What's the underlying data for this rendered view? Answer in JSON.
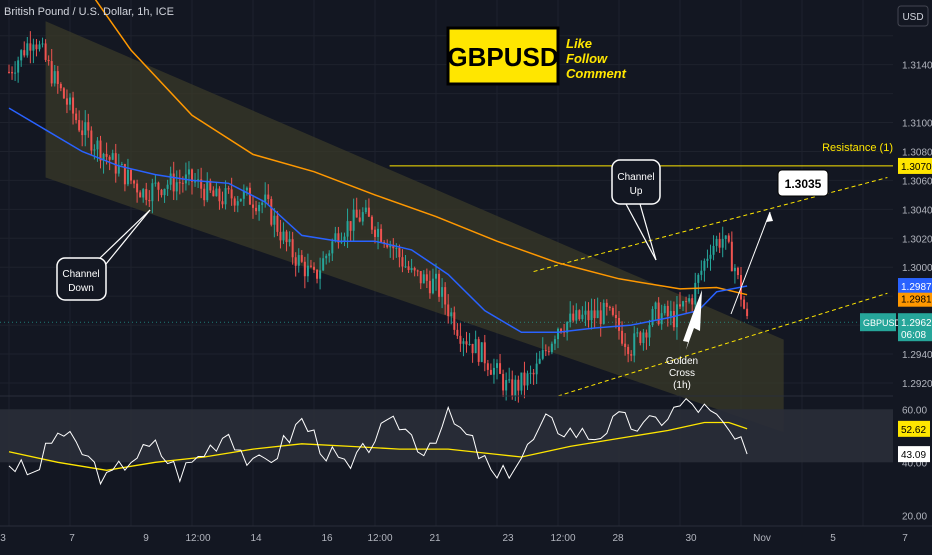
{
  "header": {
    "symbol_title": "British Pound / U.S. Dollar, 1h, ICE"
  },
  "badge": {
    "ticker": "GBPUSD",
    "line1": "Like",
    "line2": "Follow",
    "line3": "Comment",
    "color": "#ffe600"
  },
  "colors": {
    "background": "#131722",
    "grid": "#1e222d",
    "channel_fill": "#3a3a28",
    "price_up": "#26a69a",
    "price_down": "#ef5350",
    "ma_blue": "#2962ff",
    "ma_orange": "#ff9800",
    "resistance": "#ffe600",
    "rsi_line": "#ffffff",
    "rsi_ma": "#ffe600",
    "rsi_band": "#2a2e39"
  },
  "annotations": {
    "channel_down": {
      "line1": "Channel",
      "line2": "Down"
    },
    "channel_up": {
      "line1": "Channel",
      "line2": "Up"
    },
    "target": "1.3035",
    "golden_cross": {
      "line1": "Golden",
      "line2": "Cross",
      "line3": "(1h)"
    },
    "resistance": "Resistance (1)"
  },
  "price_axis": {
    "currency": "USD",
    "ticks": [
      "1.3140",
      "1.3100",
      "1.3080",
      "1.3060",
      "1.3040",
      "1.3020",
      "1.3000",
      "1.2940",
      "1.2920"
    ],
    "labels": {
      "resistance": "1.3070",
      "ma_blue": "1.2987",
      "ma_orange": "1.2981",
      "last_symbol": "GBPUSD",
      "last_price": "1.2962",
      "countdown": "06:08"
    }
  },
  "rsi_axis": {
    "ticks": [
      "60.00",
      "40.00",
      "20.00"
    ],
    "labels": {
      "rsi_ma": "52.62",
      "rsi": "43.09"
    }
  },
  "time_axis": [
    "3",
    "7",
    "9",
    "12:00",
    "14",
    "16",
    "12:00",
    "21",
    "23",
    "12:00",
    "28",
    "30",
    "Nov",
    "5",
    "7"
  ],
  "chart_data": {
    "type": "candlestick",
    "symbol": "GBPUSD",
    "timeframe": "1h",
    "y_range": [
      1.2911,
      1.3175
    ],
    "resistance_level": 1.307,
    "target_level": 1.3035,
    "price_path": [
      [
        0,
        1.3135
      ],
      [
        2,
        1.316
      ],
      [
        4,
        1.3125
      ],
      [
        6,
        1.3095
      ],
      [
        9,
        1.3068
      ],
      [
        11,
        1.3052
      ],
      [
        13,
        1.3058
      ],
      [
        15,
        1.306
      ],
      [
        17,
        1.3047
      ],
      [
        19,
        1.305
      ],
      [
        21,
        1.3044
      ],
      [
        23,
        1.3012
      ],
      [
        25,
        1.2992
      ],
      [
        27,
        1.3025
      ],
      [
        29,
        1.3036
      ],
      [
        31,
        1.302
      ],
      [
        33,
        1.2995
      ],
      [
        35,
        1.2988
      ],
      [
        37,
        1.2955
      ],
      [
        39,
        1.2938
      ],
      [
        41,
        1.2915
      ],
      [
        43,
        1.2925
      ],
      [
        45,
        1.296
      ],
      [
        47,
        1.2965
      ],
      [
        49,
        1.2968
      ],
      [
        51,
        1.2945
      ],
      [
        53,
        1.2968
      ],
      [
        54.5,
        1.2965
      ],
      [
        56,
        1.298
      ],
      [
        57.5,
        1.3015
      ],
      [
        58.5,
        1.302
      ],
      [
        59.5,
        1.3
      ],
      [
        60.5,
        1.2962
      ]
    ],
    "ma_blue_path": [
      [
        0,
        1.311
      ],
      [
        3,
        1.3095
      ],
      [
        6,
        1.308
      ],
      [
        9,
        1.307
      ],
      [
        12,
        1.3064
      ],
      [
        15,
        1.306
      ],
      [
        18,
        1.3058
      ],
      [
        21,
        1.3045
      ],
      [
        24,
        1.3022
      ],
      [
        27,
        1.3018
      ],
      [
        30,
        1.3018
      ],
      [
        33,
        1.3012
      ],
      [
        36,
        1.2995
      ],
      [
        39,
        1.297
      ],
      [
        42,
        1.2955
      ],
      [
        45,
        1.2955
      ],
      [
        48,
        1.2958
      ],
      [
        51,
        1.296
      ],
      [
        54,
        1.2965
      ],
      [
        56.5,
        1.297
      ],
      [
        58,
        1.2983
      ],
      [
        60.5,
        1.2987
      ]
    ],
    "ma_orange_path": [
      [
        0,
        1.325
      ],
      [
        5,
        1.321
      ],
      [
        10,
        1.315
      ],
      [
        15,
        1.3105
      ],
      [
        20,
        1.3078
      ],
      [
        25,
        1.3066
      ],
      [
        30,
        1.305
      ],
      [
        35,
        1.3035
      ],
      [
        40,
        1.3018
      ],
      [
        45,
        1.3003
      ],
      [
        50,
        1.2992
      ],
      [
        55,
        1.2985
      ],
      [
        58,
        1.2986
      ],
      [
        60.5,
        1.2981
      ]
    ],
    "channel_down": {
      "upper": [
        [
          3,
          1.317
        ],
        [
          63.5,
          1.295
        ]
      ],
      "lower": [
        [
          3,
          1.3062
        ],
        [
          63.5,
          1.2886
        ]
      ]
    },
    "channel_up": {
      "upper": [
        [
          43,
          1.2997
        ],
        [
          72,
          1.3062
        ]
      ],
      "lower": [
        [
          45,
          1.2911
        ],
        [
          72,
          1.2982
        ]
      ]
    },
    "rsi": {
      "y_range": [
        16,
        65
      ],
      "rsi_path": [
        [
          0,
          40
        ],
        [
          2,
          35
        ],
        [
          4,
          52
        ],
        [
          6,
          44
        ],
        [
          8,
          33
        ],
        [
          10,
          42
        ],
        [
          12,
          46
        ],
        [
          14,
          36
        ],
        [
          16,
          44
        ],
        [
          18,
          52
        ],
        [
          20,
          38
        ],
        [
          22,
          44
        ],
        [
          24,
          56
        ],
        [
          26,
          44
        ],
        [
          28,
          37
        ],
        [
          30,
          50
        ],
        [
          32,
          55
        ],
        [
          34,
          45
        ],
        [
          36,
          57
        ],
        [
          38,
          47
        ],
        [
          40,
          33
        ],
        [
          42,
          42
        ],
        [
          44,
          55
        ],
        [
          46,
          52
        ],
        [
          48,
          50
        ],
        [
          50,
          56
        ],
        [
          52,
          53
        ],
        [
          54,
          58
        ],
        [
          55.5,
          63
        ],
        [
          57,
          60
        ],
        [
          58.5,
          54
        ],
        [
          60.5,
          43.09
        ]
      ],
      "rsi_ma_path": [
        [
          0,
          44
        ],
        [
          4,
          40
        ],
        [
          8,
          37
        ],
        [
          12,
          40
        ],
        [
          16,
          42
        ],
        [
          20,
          45
        ],
        [
          24,
          47
        ],
        [
          28,
          46
        ],
        [
          32,
          45
        ],
        [
          36,
          45
        ],
        [
          40,
          43
        ],
        [
          42,
          42
        ],
        [
          46,
          46
        ],
        [
          50,
          49
        ],
        [
          54,
          52
        ],
        [
          57,
          55
        ],
        [
          59,
          55
        ],
        [
          60.5,
          52.62
        ]
      ]
    }
  }
}
